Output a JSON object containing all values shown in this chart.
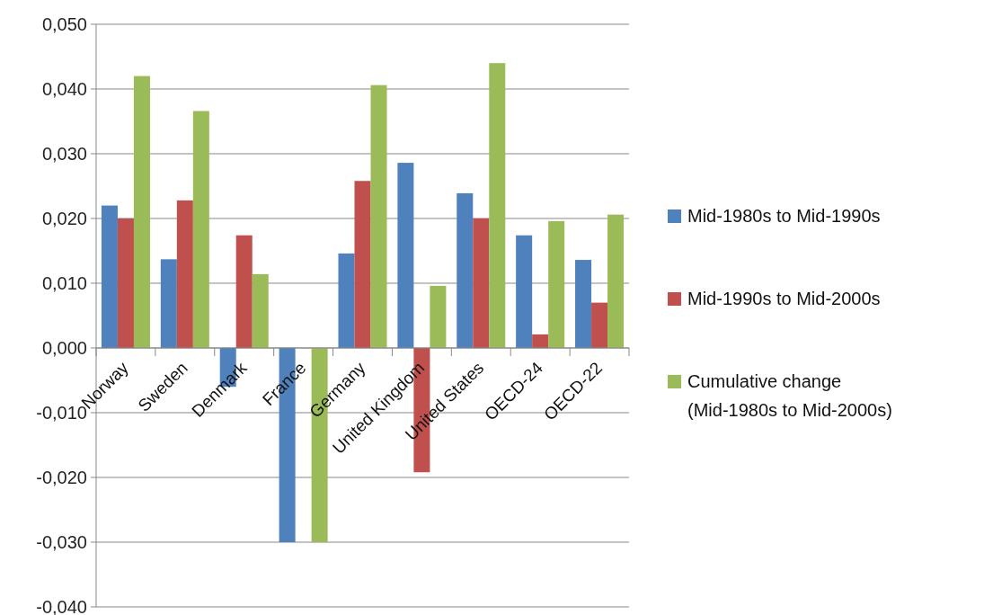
{
  "chart_data": {
    "type": "bar",
    "categories": [
      "Norway",
      "Sweden",
      "Denmark",
      "France",
      "Germany",
      "United Kingdom",
      "United States",
      "OECD-24",
      "OECD-22"
    ],
    "series": [
      {
        "name": "Mid-1980s to Mid-1990s",
        "color": "#4f81bd",
        "values": [
          0.022,
          0.0137,
          -0.006,
          -0.03,
          0.0146,
          0.0286,
          0.0239,
          0.0174,
          0.0136
        ]
      },
      {
        "name": "Mid-1990s to Mid-2000s",
        "color": "#c0504d",
        "values": [
          0.02,
          0.0228,
          0.0174,
          0,
          0.0258,
          -0.0192,
          0.02,
          0.0021,
          0.007
        ]
      },
      {
        "name": "Cumulative change (Mid-1980s to Mid-2000s)",
        "color": "#9bbb59",
        "values": [
          0.042,
          0.0366,
          0.0114,
          -0.03,
          0.0406,
          0.0096,
          0.044,
          0.0196,
          0.0206
        ]
      }
    ],
    "ylim": [
      -0.04,
      0.05
    ],
    "yticks": [
      {
        "value": -0.04,
        "label": "-0,040"
      },
      {
        "value": -0.03,
        "label": "-0,030"
      },
      {
        "value": -0.02,
        "label": "-0,020"
      },
      {
        "value": -0.01,
        "label": "-0,010"
      },
      {
        "value": 0,
        "label": "0,000"
      },
      {
        "value": 0.01,
        "label": "0,010"
      },
      {
        "value": 0.02,
        "label": "0,020"
      },
      {
        "value": 0.03,
        "label": "0,030"
      },
      {
        "value": 0.04,
        "label": "0,040"
      },
      {
        "value": 0.05,
        "label": "0,050"
      }
    ],
    "grid": "y",
    "legend": "right"
  }
}
